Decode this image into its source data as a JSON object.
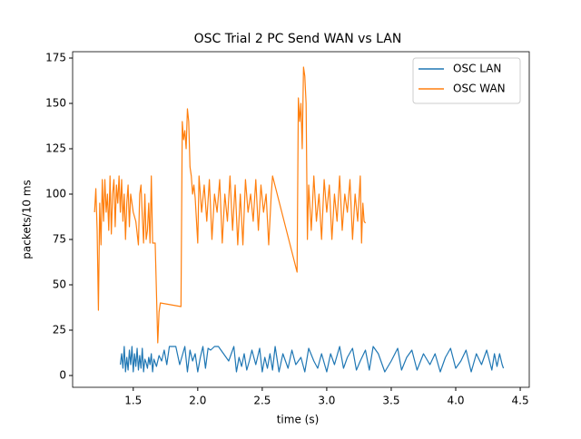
{
  "chart_data": {
    "type": "line",
    "title": "OSC Trial 2 PC Send WAN vs LAN",
    "x_label": "time (s)",
    "y_label": "packets/10 ms",
    "xlim": [
      1.03,
      4.57
    ],
    "ylim": [
      -6.5,
      178.5
    ],
    "xticks": [
      {
        "value": 1.5,
        "label": "1.5"
      },
      {
        "value": 2,
        "label": "2.0"
      },
      {
        "value": 2.5,
        "label": "2.5"
      },
      {
        "value": 3,
        "label": "3.0"
      },
      {
        "value": 3.5,
        "label": "3.5"
      },
      {
        "value": 4,
        "label": "4.0"
      },
      {
        "value": 4.5,
        "label": "4.5"
      }
    ],
    "yticks": [
      0,
      25,
      50,
      75,
      100,
      125,
      150,
      175
    ],
    "legend": "upper right",
    "series": [
      {
        "name": "OSC LAN",
        "color": "#1f77b4",
        "x": [
          1.4,
          1.41,
          1.42,
          1.43,
          1.44,
          1.45,
          1.46,
          1.47,
          1.48,
          1.49,
          1.5,
          1.51,
          1.52,
          1.53,
          1.54,
          1.55,
          1.56,
          1.57,
          1.58,
          1.59,
          1.6,
          1.61,
          1.62,
          1.63,
          1.64,
          1.65,
          1.66,
          1.68,
          1.7,
          1.72,
          1.74,
          1.76,
          1.78,
          1.8,
          1.83,
          1.86,
          1.9,
          1.92,
          1.94,
          1.96,
          1.98,
          2.0,
          2.02,
          2.04,
          2.06,
          2.08,
          2.1,
          2.13,
          2.16,
          2.2,
          2.24,
          2.28,
          2.3,
          2.32,
          2.34,
          2.36,
          2.38,
          2.4,
          2.42,
          2.45,
          2.48,
          2.5,
          2.52,
          2.54,
          2.56,
          2.58,
          2.6,
          2.63,
          2.66,
          2.7,
          2.73,
          2.76,
          2.8,
          2.83,
          2.86,
          2.9,
          2.93,
          2.96,
          3.0,
          3.03,
          3.06,
          3.1,
          3.13,
          3.16,
          3.2,
          3.23,
          3.26,
          3.3,
          3.33,
          3.36,
          3.4,
          3.45,
          3.5,
          3.55,
          3.58,
          3.62,
          3.66,
          3.7,
          3.75,
          3.8,
          3.84,
          3.88,
          3.92,
          3.96,
          4.0,
          4.04,
          4.08,
          4.12,
          4.16,
          4.2,
          4.24,
          4.28,
          4.3,
          4.32,
          4.34,
          4.36,
          4.37
        ],
        "values": [
          6,
          12,
          4,
          16,
          2,
          10,
          3,
          14,
          6,
          16,
          2,
          12,
          5,
          15,
          3,
          11,
          4,
          15,
          2,
          9,
          7,
          4,
          10,
          6,
          12,
          2,
          9,
          5,
          11,
          8,
          14,
          6,
          16,
          16,
          16,
          6,
          16,
          2,
          14,
          8,
          12,
          2,
          10,
          16,
          4,
          15,
          14,
          16,
          16,
          12,
          8,
          16,
          2,
          10,
          5,
          12,
          3,
          8,
          14,
          6,
          15,
          2,
          10,
          4,
          12,
          3,
          16,
          2,
          12,
          4,
          14,
          6,
          10,
          2,
          15,
          8,
          4,
          12,
          2,
          12,
          6,
          16,
          4,
          10,
          15,
          3,
          8,
          14,
          3,
          16,
          12,
          2,
          8,
          15,
          3,
          10,
          14,
          3,
          12,
          6,
          12,
          2,
          10,
          15,
          4,
          8,
          14,
          2,
          12,
          6,
          14,
          3,
          12,
          5,
          12,
          6,
          4
        ],
        "axis": "y"
      },
      {
        "name": "OSC WAN",
        "color": "#ff7f0e",
        "x": [
          1.2,
          1.21,
          1.22,
          1.23,
          1.24,
          1.25,
          1.26,
          1.27,
          1.28,
          1.29,
          1.3,
          1.31,
          1.32,
          1.33,
          1.34,
          1.35,
          1.36,
          1.37,
          1.38,
          1.39,
          1.4,
          1.41,
          1.42,
          1.43,
          1.44,
          1.45,
          1.46,
          1.47,
          1.48,
          1.5,
          1.52,
          1.54,
          1.55,
          1.56,
          1.57,
          1.58,
          1.59,
          1.6,
          1.61,
          1.62,
          1.63,
          1.64,
          1.65,
          1.67,
          1.69,
          1.7,
          1.71,
          1.87,
          1.88,
          1.89,
          1.9,
          1.91,
          1.92,
          1.93,
          1.94,
          1.95,
          1.96,
          1.97,
          1.98,
          2.0,
          2.01,
          2.03,
          2.05,
          2.07,
          2.09,
          2.11,
          2.13,
          2.15,
          2.17,
          2.19,
          2.21,
          2.23,
          2.25,
          2.27,
          2.29,
          2.31,
          2.33,
          2.35,
          2.37,
          2.39,
          2.41,
          2.43,
          2.45,
          2.47,
          2.49,
          2.51,
          2.53,
          2.55,
          2.57,
          2.58,
          2.77,
          2.78,
          2.79,
          2.8,
          2.81,
          2.82,
          2.83,
          2.84,
          2.85,
          2.86,
          2.88,
          2.9,
          2.92,
          2.94,
          2.96,
          2.98,
          3.0,
          3.02,
          3.04,
          3.06,
          3.08,
          3.1,
          3.12,
          3.14,
          3.16,
          3.18,
          3.2,
          3.22,
          3.24,
          3.26,
          3.27,
          3.28,
          3.29,
          3.3
        ],
        "values": [
          90,
          103,
          80,
          36,
          95,
          72,
          108,
          85,
          108,
          90,
          100,
          80,
          110,
          78,
          100,
          108,
          82,
          105,
          95,
          110,
          90,
          108,
          85,
          100,
          75,
          95,
          105,
          82,
          100,
          90,
          85,
          72,
          100,
          105,
          88,
          73,
          100,
          75,
          80,
          95,
          73,
          110,
          73,
          73,
          18,
          35,
          40,
          38,
          140,
          130,
          135,
          125,
          147,
          140,
          115,
          110,
          100,
          105,
          98,
          73,
          110,
          90,
          105,
          85,
          108,
          75,
          100,
          90,
          108,
          73,
          100,
          85,
          110,
          80,
          105,
          72,
          100,
          72,
          108,
          90,
          100,
          85,
          108,
          80,
          105,
          90,
          100,
          72,
          100,
          110,
          57,
          153,
          140,
          150,
          125,
          170,
          165,
          150,
          75,
          105,
          80,
          110,
          85,
          100,
          75,
          108,
          90,
          105,
          75,
          100,
          85,
          110,
          80,
          100,
          90,
          108,
          75,
          100,
          85,
          110,
          73,
          95,
          85,
          84
        ],
        "axis": "y"
      }
    ]
  }
}
